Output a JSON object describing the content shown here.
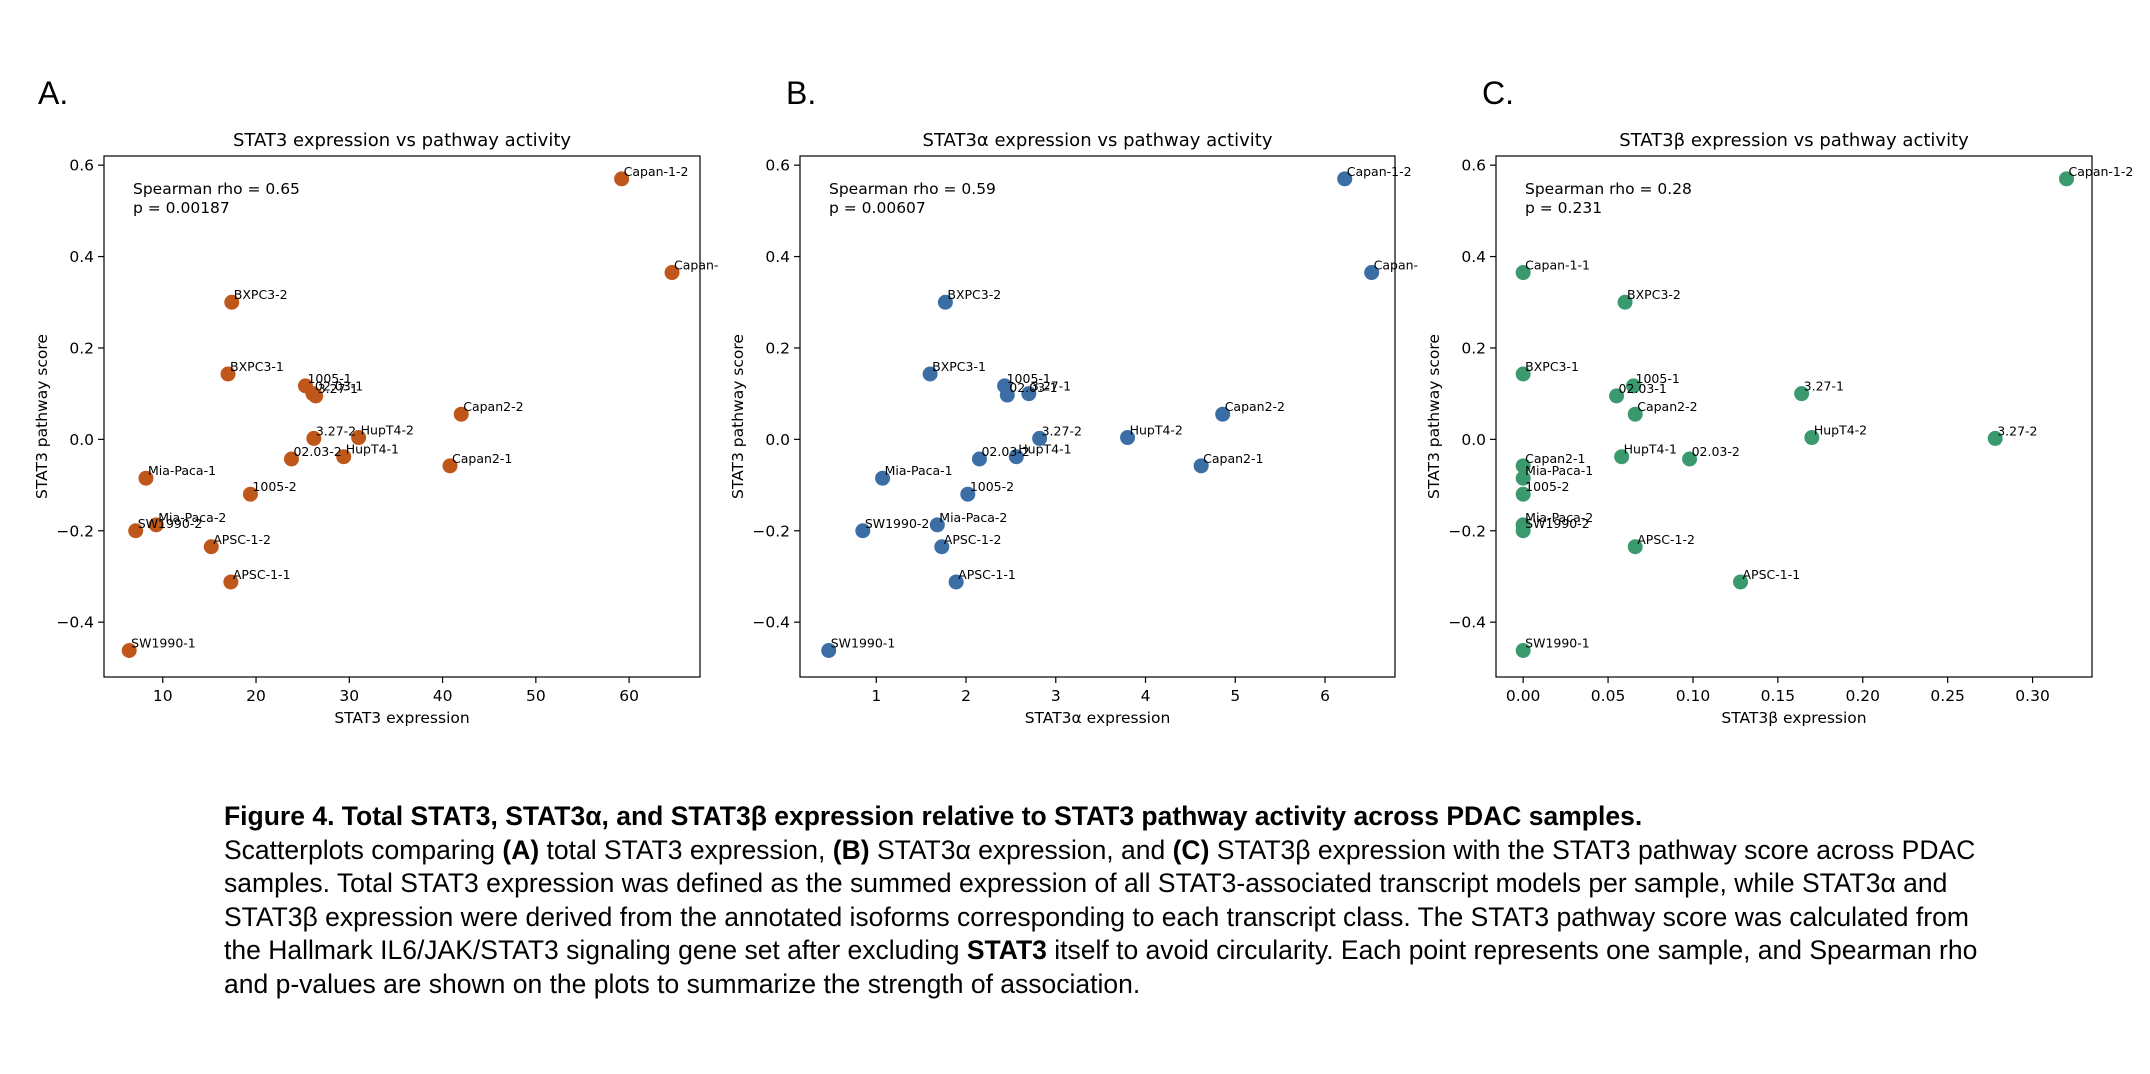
{
  "chart_data": [
    {
      "type": "scatter",
      "panel_letter": "A.",
      "title": "STAT3 expression vs pathway activity",
      "xlabel": "STAT3 expression",
      "ylabel": "STAT3 pathway score",
      "xlim": [
        3.7,
        67.6
      ],
      "ylim": [
        -0.52,
        0.62
      ],
      "xticks": [
        10,
        20,
        30,
        40,
        50,
        60
      ],
      "xtick_labels": [
        "10",
        "20",
        "30",
        "40",
        "50",
        "60"
      ],
      "yticks": [
        -0.4,
        -0.2,
        0.0,
        0.2,
        0.4,
        0.6
      ],
      "ytick_labels": [
        "−0.4",
        "−0.2",
        "0.0",
        "0.2",
        "0.4",
        "0.6"
      ],
      "stat_lines": [
        "Spearman rho = 0.65",
        "p = 0.00187"
      ],
      "color": "#c0571a",
      "points": [
        {
          "label": "Capan-1-2",
          "x": 59.2,
          "y": 0.57
        },
        {
          "label": "Capan-",
          "x": 64.6,
          "y": 0.365
        },
        {
          "label": "BXPC3-2",
          "x": 17.4,
          "y": 0.3
        },
        {
          "label": "BXPC3-1",
          "x": 17.0,
          "y": 0.143
        },
        {
          "label": "1005-1",
          "x": 25.3,
          "y": 0.117
        },
        {
          "label": "02.03-1",
          "x": 26.1,
          "y": 0.1
        },
        {
          "label": "3.27-1",
          "x": 26.4,
          "y": 0.095
        },
        {
          "label": "Capan2-2",
          "x": 42.0,
          "y": 0.055
        },
        {
          "label": "3.27-2",
          "x": 26.2,
          "y": 0.002
        },
        {
          "label": "HupT4-2",
          "x": 31.0,
          "y": 0.004
        },
        {
          "label": "02.03-2",
          "x": 23.8,
          "y": -0.043
        },
        {
          "label": "HupT4-1",
          "x": 29.4,
          "y": -0.038
        },
        {
          "label": "Capan2-1",
          "x": 40.8,
          "y": -0.058
        },
        {
          "label": "Mia-Paca-1",
          "x": 8.2,
          "y": -0.085
        },
        {
          "label": "1005-2",
          "x": 19.4,
          "y": -0.12
        },
        {
          "label": "Mia-Paca-2",
          "x": 9.3,
          "y": -0.187
        },
        {
          "label": "SW1990-2",
          "x": 7.1,
          "y": -0.2
        },
        {
          "label": "APSC-1-2",
          "x": 15.2,
          "y": -0.235
        },
        {
          "label": "APSC-1-1",
          "x": 17.3,
          "y": -0.312
        },
        {
          "label": "SW1990-1",
          "x": 6.4,
          "y": -0.462
        }
      ]
    },
    {
      "type": "scatter",
      "panel_letter": "B.",
      "title": "STAT3α expression vs pathway activity",
      "xlabel": "STAT3α expression",
      "ylabel": "STAT3 pathway score",
      "xlim": [
        0.15,
        6.78
      ],
      "ylim": [
        -0.52,
        0.62
      ],
      "xticks": [
        1,
        2,
        3,
        4,
        5,
        6
      ],
      "xtick_labels": [
        "1",
        "2",
        "3",
        "4",
        "5",
        "6"
      ],
      "yticks": [
        -0.4,
        -0.2,
        0.0,
        0.2,
        0.4,
        0.6
      ],
      "ytick_labels": [
        "−0.4",
        "−0.2",
        "0.0",
        "0.2",
        "0.4",
        "0.6"
      ],
      "stat_lines": [
        "Spearman rho = 0.59",
        "p = 0.00607"
      ],
      "color": "#3a6ea5",
      "points": [
        {
          "label": "Capan-1-2",
          "x": 6.22,
          "y": 0.57
        },
        {
          "label": "Capan-",
          "x": 6.52,
          "y": 0.365
        },
        {
          "label": "BXPC3-2",
          "x": 1.77,
          "y": 0.3
        },
        {
          "label": "BXPC3-1",
          "x": 1.6,
          "y": 0.143
        },
        {
          "label": "1005-1",
          "x": 2.43,
          "y": 0.117
        },
        {
          "label": "02.03-1",
          "x": 2.46,
          "y": 0.097
        },
        {
          "label": "3.27-1",
          "x": 2.7,
          "y": 0.1
        },
        {
          "label": "Capan2-2",
          "x": 4.86,
          "y": 0.055
        },
        {
          "label": "3.27-2",
          "x": 2.82,
          "y": 0.002
        },
        {
          "label": "HupT4-2",
          "x": 3.8,
          "y": 0.004
        },
        {
          "label": "02.03-2",
          "x": 2.15,
          "y": -0.043
        },
        {
          "label": "HupT4-1",
          "x": 2.56,
          "y": -0.038
        },
        {
          "label": "Capan2-1",
          "x": 4.62,
          "y": -0.058
        },
        {
          "label": "Mia-Paca-1",
          "x": 1.07,
          "y": -0.085
        },
        {
          "label": "1005-2",
          "x": 2.02,
          "y": -0.12
        },
        {
          "label": "Mia-Paca-2",
          "x": 1.68,
          "y": -0.187
        },
        {
          "label": "SW1990-2",
          "x": 0.85,
          "y": -0.2
        },
        {
          "label": "APSC-1-2",
          "x": 1.73,
          "y": -0.235
        },
        {
          "label": "APSC-1-1",
          "x": 1.89,
          "y": -0.312
        },
        {
          "label": "SW1990-1",
          "x": 0.47,
          "y": -0.462
        }
      ]
    },
    {
      "type": "scatter",
      "panel_letter": "C.",
      "title": "STAT3β expression vs pathway activity",
      "xlabel": "STAT3β expression",
      "ylabel": "STAT3 pathway score",
      "xlim": [
        -0.016,
        0.335
      ],
      "ylim": [
        -0.52,
        0.62
      ],
      "xticks": [
        0.0,
        0.05,
        0.1,
        0.15,
        0.2,
        0.25,
        0.3
      ],
      "xtick_labels": [
        "0.00",
        "0.05",
        "0.10",
        "0.15",
        "0.20",
        "0.25",
        "0.30"
      ],
      "yticks": [
        -0.4,
        -0.2,
        0.0,
        0.2,
        0.4,
        0.6
      ],
      "ytick_labels": [
        "−0.4",
        "−0.2",
        "0.0",
        "0.2",
        "0.4",
        "0.6"
      ],
      "stat_lines": [
        "Spearman rho = 0.28",
        "p = 0.231"
      ],
      "color": "#3a9a6e",
      "points": [
        {
          "label": "Capan-1-2",
          "x": 0.32,
          "y": 0.57
        },
        {
          "label": "Capan-1-1",
          "x": 0.0,
          "y": 0.365
        },
        {
          "label": "BXPC3-2",
          "x": 0.06,
          "y": 0.3
        },
        {
          "label": "BXPC3-1",
          "x": 0.0,
          "y": 0.143
        },
        {
          "label": "1005-1",
          "x": 0.065,
          "y": 0.117
        },
        {
          "label": "02.03-1",
          "x": 0.055,
          "y": 0.095
        },
        {
          "label": "3.27-1",
          "x": 0.164,
          "y": 0.1
        },
        {
          "label": "Capan2-2",
          "x": 0.066,
          "y": 0.055
        },
        {
          "label": "HupT4-2",
          "x": 0.17,
          "y": 0.004
        },
        {
          "label": "3.27-2",
          "x": 0.278,
          "y": 0.002
        },
        {
          "label": "HupT4-1",
          "x": 0.058,
          "y": -0.038
        },
        {
          "label": "02.03-2",
          "x": 0.098,
          "y": -0.043
        },
        {
          "label": "Capan2-1",
          "x": 0.0,
          "y": -0.058
        },
        {
          "label": "Mia-Paca-1",
          "x": 0.0,
          "y": -0.085
        },
        {
          "label": "1005-2",
          "x": 0.0,
          "y": -0.12
        },
        {
          "label": "Mia-Paca-2",
          "x": 0.0,
          "y": -0.187
        },
        {
          "label": "SW1990-2",
          "x": 0.0,
          "y": -0.2
        },
        {
          "label": "APSC-1-2",
          "x": 0.066,
          "y": -0.235
        },
        {
          "label": "APSC-1-1",
          "x": 0.128,
          "y": -0.312
        },
        {
          "label": "SW1990-1",
          "x": 0.0,
          "y": -0.462
        }
      ]
    }
  ],
  "caption": {
    "title": "Figure 4. Total STAT3, STAT3α, and STAT3β expression relative to STAT3 pathway activity across PDAC samples.",
    "t1": "Scatterplots comparing ",
    "a": "(A)",
    "t2": " total STAT3 expression, ",
    "b": "(B)",
    "t3": " STAT3α expression, and ",
    "c": "(C)",
    "t4": " STAT3β expression with the STAT3 pathway score across PDAC samples. Total STAT3 expression was defined as the summed expression of all STAT3-associated transcript models per sample, while STAT3α and STAT3β expression were derived from the annotated isoforms corresponding to each transcript class. The STAT3 pathway score was calculated from the Hallmark IL6/JAK/STAT3 signaling gene set after excluding ",
    "stat3": "STAT3",
    "t5": " itself to avoid circularity. Each point represents one sample, and Spearman rho and p-values are shown on the plots to summarize the strength of association."
  }
}
